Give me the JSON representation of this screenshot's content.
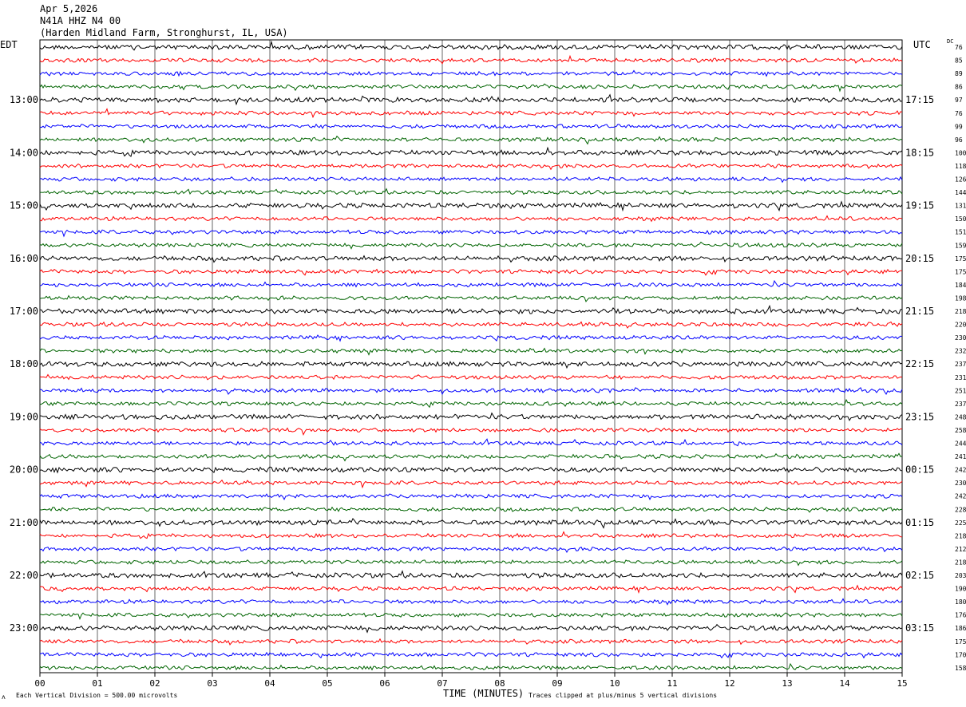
{
  "header": {
    "date": "Apr 5,2026",
    "station": "N41A HHZ N4 00",
    "location": "(Harden Midland Farm, Stronghurst, IL, USA)"
  },
  "left_tz": "EDT",
  "right_tz": "UTC",
  "dc_label": "DC",
  "footer": {
    "scale": "Each Vertical Division =  500.00 microvolts",
    "xlabel": "TIME (MINUTES)",
    "clip": "Traces clipped at plus/minus 5 vertical divisions"
  },
  "colors": [
    "#000000",
    "#ff0000",
    "#0000ff",
    "#006400"
  ],
  "chart_data": {
    "type": "line",
    "title": "N41A HHZ N4 00",
    "xlabel": "TIME (MINUTES)",
    "ylabel": "",
    "xlim": [
      0,
      15
    ],
    "x_ticks": [
      "00",
      "01",
      "02",
      "03",
      "04",
      "05",
      "06",
      "07",
      "08",
      "09",
      "10",
      "11",
      "12",
      "13",
      "14",
      "15"
    ],
    "trace_minutes": 15,
    "left_labels": [
      "13:00",
      "14:00",
      "15:00",
      "16:00",
      "17:00",
      "18:00",
      "19:00",
      "20:00",
      "21:00",
      "22:00",
      "23:00"
    ],
    "right_labels": [
      "17:15",
      "18:15",
      "19:15",
      "20:15",
      "21:15",
      "22:15",
      "23:15",
      "00:15",
      "01:15",
      "02:15",
      "03:15"
    ],
    "dc_offsets": [
      76,
      85,
      89,
      86,
      97,
      76,
      99,
      96,
      100,
      118,
      126,
      144,
      131,
      150,
      151,
      159,
      175,
      175,
      184,
      198,
      218,
      220,
      230,
      232,
      237,
      231,
      251,
      237,
      248,
      258,
      244,
      241,
      242,
      230,
      242,
      228,
      225,
      218,
      212,
      218,
      203,
      190,
      180,
      176,
      186,
      175,
      170,
      158
    ],
    "traces": 48
  }
}
